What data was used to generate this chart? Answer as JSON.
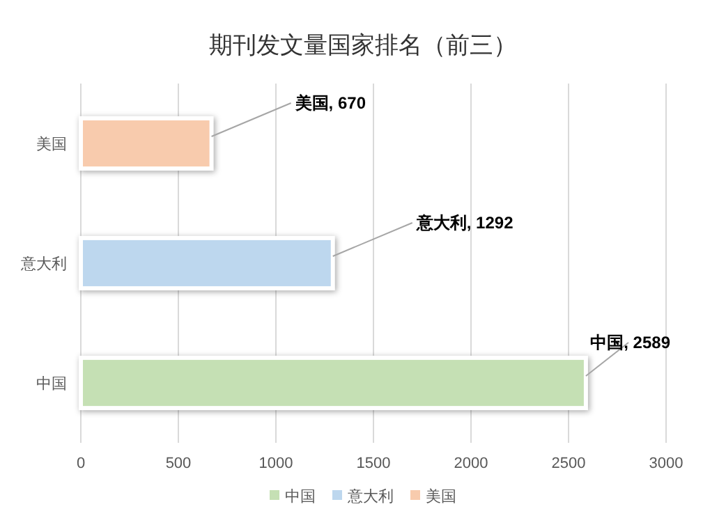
{
  "chart_data": {
    "type": "bar",
    "orientation": "horizontal",
    "title": "期刊发文量国家排名（前三）",
    "categories": [
      "美国",
      "意大利",
      "中国"
    ],
    "series": [
      {
        "name": "中国",
        "color": "#c5e0b4",
        "values": [
          null,
          null,
          2589
        ],
        "value_labels": [
          null,
          null,
          "中国, 2589"
        ]
      },
      {
        "name": "意大利",
        "color": "#bdd7ee",
        "values": [
          null,
          1292,
          null
        ],
        "value_labels": [
          null,
          "意大利, 1292",
          null
        ]
      },
      {
        "name": "美国",
        "color": "#f8cbad",
        "values": [
          670,
          null,
          null
        ],
        "value_labels": [
          "美国, 670",
          null,
          null
        ]
      }
    ],
    "xlim": [
      0,
      3000
    ],
    "xticks": [
      0,
      500,
      1000,
      1500,
      2000,
      2500,
      3000
    ],
    "grid": "x",
    "legend": "bottom"
  }
}
